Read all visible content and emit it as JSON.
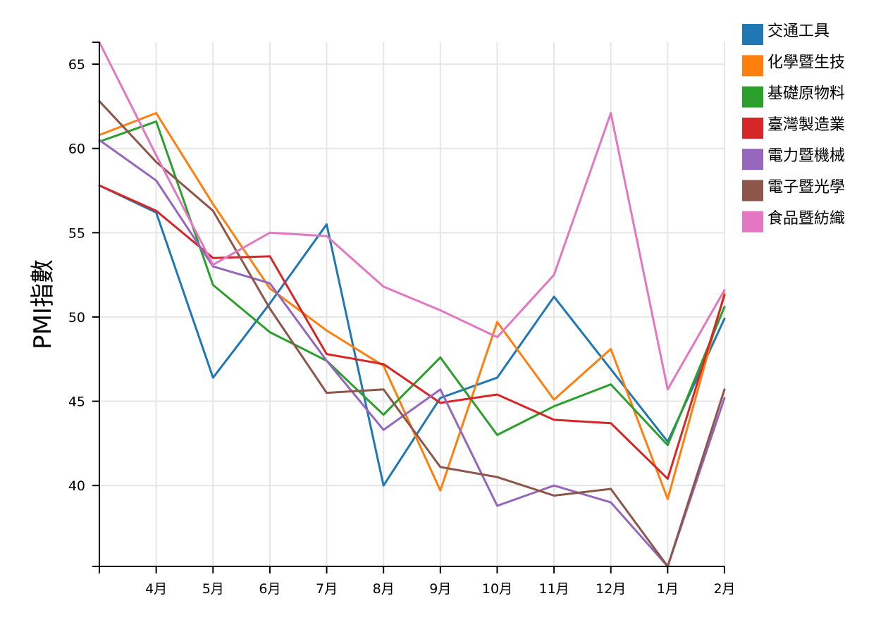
{
  "chart_data": {
    "type": "line",
    "ylabel": "PMI指數",
    "xlabel": "",
    "ylim": [
      35.2,
      66.3
    ],
    "y_ticks": [
      40,
      45,
      50,
      55,
      60,
      65
    ],
    "x_tick_labels": [
      "",
      "4月",
      "5月",
      "6月",
      "7月",
      "8月",
      "9月",
      "10月",
      "11月",
      "12月",
      "1月",
      "2月"
    ],
    "grid": true,
    "legend_position": "top-right",
    "series": [
      {
        "name": "交通工具",
        "color": "#1f77b4",
        "values": [
          57.8,
          56.2,
          46.4,
          50.8,
          55.5,
          40.0,
          45.2,
          46.4,
          51.2,
          46.9,
          42.6,
          49.9
        ]
      },
      {
        "name": "化學暨生技",
        "color": "#ff7f0e",
        "values": [
          60.8,
          62.1,
          56.7,
          51.7,
          49.2,
          47.1,
          39.7,
          49.7,
          45.1,
          48.1,
          39.2,
          51.4
        ]
      },
      {
        "name": "基礎原物料",
        "color": "#2ca02c",
        "values": [
          60.4,
          61.6,
          51.9,
          49.1,
          47.4,
          44.2,
          47.6,
          43.0,
          44.7,
          46.0,
          42.4,
          50.6
        ]
      },
      {
        "name": "臺灣製造業",
        "color": "#d62728",
        "values": [
          57.8,
          56.3,
          53.5,
          53.6,
          47.8,
          47.2,
          44.9,
          45.4,
          43.9,
          43.7,
          40.4,
          51.3
        ]
      },
      {
        "name": "電力暨機械",
        "color": "#9467bd",
        "values": [
          60.5,
          58.1,
          53.0,
          52.0,
          47.4,
          43.3,
          45.7,
          38.8,
          40.0,
          39.0,
          35.2,
          45.2
        ]
      },
      {
        "name": "電子暨光學",
        "color": "#8c564b",
        "values": [
          62.8,
          59.2,
          56.3,
          50.5,
          45.5,
          45.7,
          41.1,
          40.5,
          39.4,
          39.8,
          35.2,
          45.7
        ]
      },
      {
        "name": "食品暨紡織",
        "color": "#e377c2",
        "values": [
          66.3,
          59.6,
          53.1,
          55.0,
          54.8,
          51.8,
          50.4,
          48.8,
          52.5,
          62.1,
          45.7,
          51.6
        ]
      }
    ]
  }
}
